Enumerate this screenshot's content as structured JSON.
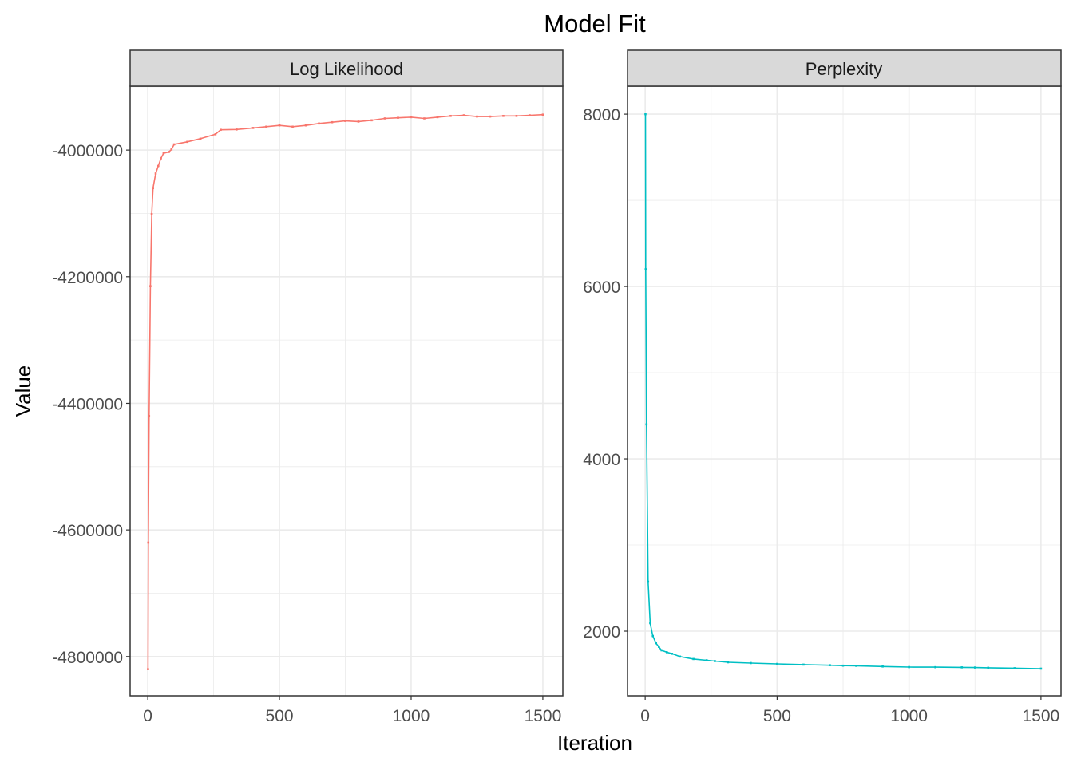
{
  "chart_data": {
    "type": "line",
    "title": "Model Fit",
    "xlabel": "Iteration",
    "ylabel": "Value",
    "grid": true,
    "legend": "none",
    "panels": [
      {
        "strip": "Log Likelihood",
        "color": "#F8766D",
        "xlim": [
          -67,
          1576
        ],
        "ylim": [
          -4862000,
          -3899000
        ],
        "x_ticks": [
          0,
          500,
          1000,
          1500
        ],
        "x_tick_labels": [
          "0",
          "500",
          "1000",
          "1500"
        ],
        "y_ticks": [
          -4800000,
          -4600000,
          -4400000,
          -4200000,
          -4000000
        ],
        "y_tick_labels": [
          "-4800000",
          "-4600000",
          "-4400000",
          "-4200000",
          "-4000000"
        ],
        "x": [
          1,
          2,
          5,
          10,
          15,
          20,
          30,
          40,
          50,
          60,
          80,
          90,
          100,
          150,
          200,
          257,
          277,
          337,
          400,
          450,
          500,
          550,
          600,
          650,
          700,
          750,
          800,
          850,
          900,
          950,
          1000,
          1050,
          1100,
          1150,
          1200,
          1250,
          1300,
          1350,
          1400,
          1450,
          1500
        ],
        "y": [
          -4820000,
          -4620000,
          -4420000,
          -4215000,
          -4101000,
          -4060000,
          -4037000,
          -4025000,
          -4013000,
          -4005000,
          -4003000,
          -3999000,
          -3991000,
          -3987000,
          -3982000,
          -3975000,
          -3968000,
          -3967500,
          -3965000,
          -3963000,
          -3961000,
          -3963000,
          -3961000,
          -3958000,
          -3956000,
          -3954000,
          -3955000,
          -3953000,
          -3950000,
          -3949000,
          -3948000,
          -3950000,
          -3948000,
          -3946000,
          -3945000,
          -3947000,
          -3947000,
          -3946000,
          -3946000,
          -3945000,
          -3944000
        ]
      },
      {
        "strip": "Perplexity",
        "color": "#00BFC4",
        "xlim": [
          -67,
          1576
        ],
        "ylim": [
          1250,
          8325
        ],
        "x_ticks": [
          0,
          500,
          1000,
          1500
        ],
        "x_tick_labels": [
          "0",
          "500",
          "1000",
          "1500"
        ],
        "y_ticks": [
          2000,
          4000,
          6000,
          8000
        ],
        "y_tick_labels": [
          "2000",
          "4000",
          "6000",
          "8000"
        ],
        "x": [
          1,
          2,
          5,
          11,
          19,
          29,
          41,
          52,
          62,
          82,
          102,
          132,
          183,
          233,
          264,
          314,
          400,
          500,
          600,
          700,
          750,
          800,
          900,
          1000,
          1100,
          1200,
          1250,
          1300,
          1400,
          1500
        ],
        "y": [
          8000,
          6200,
          4400,
          2574,
          2093,
          1944,
          1860,
          1818,
          1778,
          1756,
          1738,
          1705,
          1677,
          1662,
          1653,
          1639,
          1630,
          1620,
          1612,
          1605,
          1600,
          1598,
          1590,
          1583,
          1582,
          1580,
          1578,
          1575,
          1570,
          1565
        ]
      }
    ]
  }
}
